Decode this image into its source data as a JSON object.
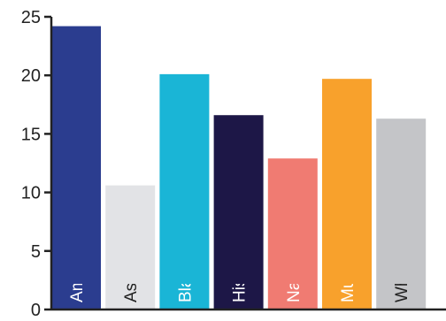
{
  "chart_data": {
    "type": "bar",
    "categories": [
      "American Indian",
      "Asian",
      "Black/African American",
      "Hispanic",
      "Native Hawaiia",
      "Multi-racial",
      "White"
    ],
    "values": [
      24.2,
      10.6,
      20.1,
      16.6,
      12.9,
      19.7,
      16.3
    ],
    "colors": [
      "#2b3d8f",
      "#e2e3e6",
      "#1ab5d6",
      "#1d1747",
      "#f07b72",
      "#f8a12c",
      "#c4c5c8"
    ],
    "label_colors": [
      "#ffffff",
      "#222222",
      "#ffffff",
      "#ffffff",
      "#ffffff",
      "#ffffff",
      "#222222"
    ],
    "ylim": [
      0,
      25
    ],
    "yticks": [
      "0",
      "5",
      "10",
      "15",
      "20",
      "25"
    ],
    "grid": false,
    "legend": "none",
    "title": "",
    "xlabel": "",
    "ylabel": ""
  }
}
